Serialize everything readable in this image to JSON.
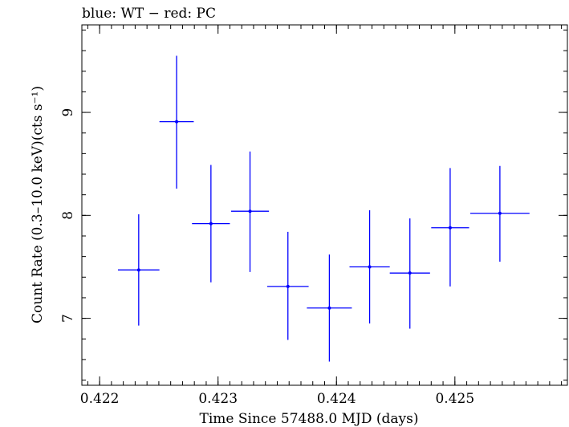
{
  "chart_data": {
    "type": "scatter",
    "title": "blue: WT − red: PC",
    "xlabel": "Time Since 57488.0 MJD (days)",
    "ylabel": "Count Rate (0.3–10.0 keV)(cts s⁻¹)",
    "xlim": [
      0.42185,
      0.42595
    ],
    "ylim": [
      6.35,
      9.85
    ],
    "x_ticks": [
      0.422,
      0.423,
      0.424,
      0.425
    ],
    "x_tick_labels": [
      "0.422",
      "0.423",
      "0.424",
      "0.425"
    ],
    "y_ticks": [
      7,
      8,
      9
    ],
    "y_tick_labels": [
      "7",
      "8",
      "9"
    ],
    "series": [
      {
        "name": "WT",
        "color": "#0000ff",
        "points": [
          {
            "x": 0.42233,
            "y": 7.47,
            "xerr": 0.000175,
            "ylo": 6.93,
            "yhi": 8.01
          },
          {
            "x": 0.42265,
            "y": 8.91,
            "xerr": 0.000145,
            "ylo": 8.26,
            "yhi": 9.55
          },
          {
            "x": 0.42294,
            "y": 7.92,
            "xerr": 0.00016,
            "ylo": 7.35,
            "yhi": 8.49
          },
          {
            "x": 0.42327,
            "y": 8.04,
            "xerr": 0.00016,
            "ylo": 7.45,
            "yhi": 8.62
          },
          {
            "x": 0.42359,
            "y": 7.31,
            "xerr": 0.000175,
            "ylo": 6.79,
            "yhi": 7.84
          },
          {
            "x": 0.42394,
            "y": 7.1,
            "xerr": 0.00019,
            "ylo": 6.58,
            "yhi": 7.62
          },
          {
            "x": 0.42428,
            "y": 7.5,
            "xerr": 0.00017,
            "ylo": 6.95,
            "yhi": 8.05
          },
          {
            "x": 0.42462,
            "y": 7.44,
            "xerr": 0.00017,
            "ylo": 6.9,
            "yhi": 7.97
          },
          {
            "x": 0.42496,
            "y": 7.88,
            "xerr": 0.00016,
            "ylo": 7.31,
            "yhi": 8.46
          },
          {
            "x": 0.42538,
            "y": 8.02,
            "xerr": 0.00025,
            "ylo": 7.55,
            "yhi": 8.48
          }
        ]
      }
    ]
  }
}
